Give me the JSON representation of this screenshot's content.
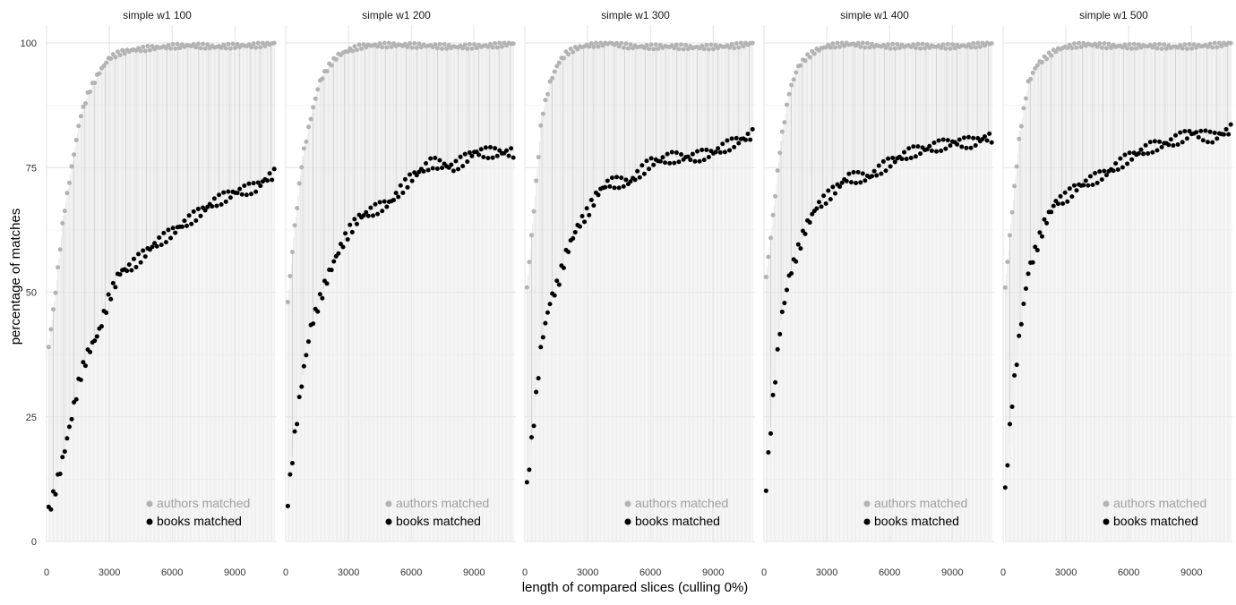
{
  "chart_data": {
    "type": "scatter",
    "ylabel": "percentage of matches",
    "xlabel": "length of compared slices (culling 0%)",
    "ylim": [
      0,
      100
    ],
    "xlim": [
      0,
      11000
    ],
    "x_ticks": [
      0,
      3000,
      6000,
      9000
    ],
    "y_ticks": [
      0,
      25,
      50,
      75,
      100
    ],
    "grid": true,
    "legend_position": "bottom-right",
    "legend": [
      {
        "label": "authors matched",
        "color": "#b3b3b3"
      },
      {
        "label": "books matched",
        "color": "#000000"
      }
    ],
    "panels": [
      {
        "title": "simple w1 100",
        "series": [
          {
            "name": "authors matched",
            "color": "#b3b3b3",
            "x": [
              100,
              400,
              800,
              1200,
              1600,
              2000,
              2500,
              3000,
              3500,
              4000,
              5000,
              6000,
              7000,
              8000,
              9000,
              10000,
              10600,
              11000
            ],
            "y": [
              39,
              49,
              65,
              75,
              85,
              90,
              94,
              97,
              98,
              98.5,
              99,
              99.3,
              99.5,
              99.2,
              99.4,
              99.5,
              99.8,
              100
            ]
          },
          {
            "name": "books matched",
            "color": "#000000",
            "x": [
              100,
              400,
              800,
              1200,
              1600,
              2000,
              2500,
              3000,
              3500,
              4000,
              5000,
              6000,
              7000,
              8000,
              9000,
              10000,
              10600,
              11000
            ],
            "y": [
              6,
              10,
              17,
              25,
              33,
              38,
              42,
              49,
              54,
              55,
              59,
              62,
              65,
              68,
              70,
              71,
              73,
              74
            ]
          }
        ]
      },
      {
        "title": "simple w1 200",
        "series": [
          {
            "name": "authors matched",
            "color": "#b3b3b3",
            "x": [
              100,
              400,
              800,
              1200,
              1600,
              2000,
              2500,
              3000,
              3500,
              4000,
              5000,
              6000,
              7000,
              8000,
              9000,
              10000,
              10600,
              11000
            ],
            "y": [
              48,
              62,
              77,
              85,
              92,
              95,
              97.5,
              98.5,
              99.2,
              99.5,
              99.6,
              99.5,
              99.4,
              99.2,
              99.3,
              99.5,
              99.8,
              100
            ]
          },
          {
            "name": "books matched",
            "color": "#000000",
            "x": [
              100,
              400,
              800,
              1200,
              1600,
              2000,
              2500,
              3000,
              3500,
              4000,
              5000,
              6000,
              7000,
              8000,
              9000,
              10000,
              10600,
              11000
            ],
            "y": [
              8,
              20,
              33,
              43,
              48,
              53,
              58,
              62,
              65,
              66,
              68,
              73,
              76,
              75,
              78,
              78,
              78,
              78
            ]
          }
        ]
      },
      {
        "title": "simple w1 300",
        "series": [
          {
            "name": "authors matched",
            "color": "#b3b3b3",
            "x": [
              100,
              400,
              800,
              1200,
              1600,
              2000,
              2500,
              3000,
              3500,
              4000,
              5000,
              6000,
              7000,
              8000,
              9000,
              10000,
              10600,
              11000
            ],
            "y": [
              51,
              65,
              85,
              92,
              96,
              98,
              99,
              99.5,
              99.7,
              100,
              99.3,
              99.2,
              99.3,
              99.1,
              99.2,
              99.4,
              99.8,
              100
            ]
          },
          {
            "name": "books matched",
            "color": "#000000",
            "x": [
              100,
              400,
              800,
              1200,
              1600,
              2000,
              2500,
              3000,
              3500,
              4000,
              5000,
              6000,
              7000,
              8000,
              9000,
              10000,
              10600,
              11000
            ],
            "y": [
              11,
              23,
              40,
              48,
              52,
              58,
              63,
              66,
              70,
              72,
              72,
              76,
              77,
              77,
              78,
              80,
              81,
              82
            ]
          }
        ]
      },
      {
        "title": "simple w1 400",
        "series": [
          {
            "name": "authors matched",
            "color": "#b3b3b3",
            "x": [
              100,
              400,
              800,
              1200,
              1600,
              2000,
              2500,
              3000,
              3500,
              4000,
              5000,
              6000,
              7000,
              8000,
              9000,
              10000,
              10600,
              11000
            ],
            "y": [
              53,
              64,
              80,
              90,
              95,
              97,
              98.5,
              99.3,
              99.6,
              99.8,
              99.5,
              99.3,
              99.4,
              99.3,
              99.3,
              99.5,
              99.8,
              100
            ]
          },
          {
            "name": "books matched",
            "color": "#000000",
            "x": [
              100,
              400,
              800,
              1200,
              1600,
              2000,
              2500,
              3000,
              3500,
              4000,
              5000,
              6000,
              7000,
              8000,
              9000,
              10000,
              10600,
              11000
            ],
            "y": [
              11,
              27,
              44,
              53,
              58,
              63,
              67,
              69,
              71,
              73,
              73,
              76,
              78,
              79,
              80,
              80,
              81,
              81
            ]
          }
        ]
      },
      {
        "title": "simple w1 500",
        "series": [
          {
            "name": "authors matched",
            "color": "#b3b3b3",
            "x": [
              100,
              400,
              800,
              1200,
              1600,
              2000,
              2500,
              3000,
              3500,
              4000,
              5000,
              6000,
              7000,
              8000,
              9000,
              10000,
              10600,
              11000
            ],
            "y": [
              51,
              65,
              82,
              92,
              95.5,
              97,
              98.5,
              99.2,
              99.5,
              99.7,
              99.4,
              99.3,
              99.4,
              99.2,
              99.3,
              99.5,
              99.8,
              100
            ]
          },
          {
            "name": "books matched",
            "color": "#000000",
            "x": [
              100,
              400,
              800,
              1200,
              1600,
              2000,
              2500,
              3000,
              3500,
              4000,
              5000,
              6000,
              7000,
              8000,
              9000,
              10000,
              10600,
              11000
            ],
            "y": [
              10,
              27,
              42,
              54,
              59,
              64,
              68,
              69,
              71,
              72,
              74,
              77,
              79,
              80,
              82,
              81,
              82,
              83
            ]
          }
        ]
      }
    ]
  }
}
